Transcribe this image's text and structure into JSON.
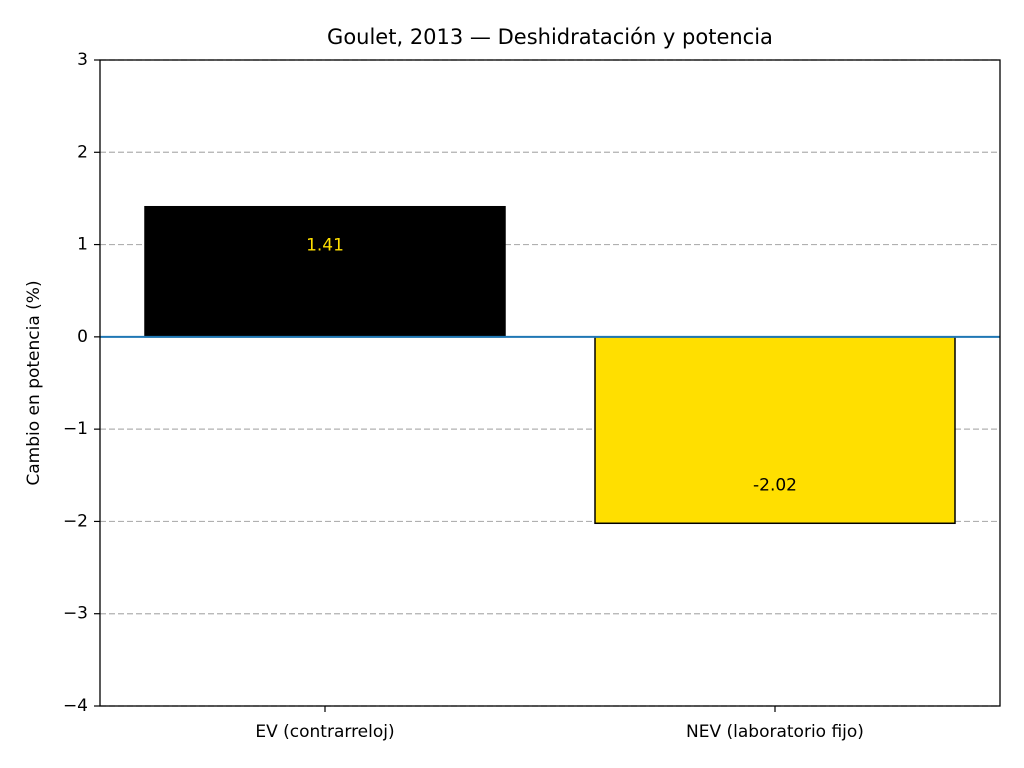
{
  "chart_data": {
    "type": "bar",
    "title": "Goulet, 2013 — Deshidratación y potencia",
    "y_label": "Cambio en potencia (%)",
    "categories": [
      "EV (contrarreloj)",
      "NEV (laboratorio fijo)"
    ],
    "values": [
      1.41,
      -2.02
    ],
    "colors": [
      "#000000",
      "#ffdf00"
    ],
    "edge_color": "#000000",
    "value_label_colors": [
      "#ffdf00",
      "#000000"
    ],
    "zero_line_color": "#1f77b4",
    "ylim": [
      -4,
      3
    ],
    "yticks": [
      {
        "value": -4,
        "label": "−4"
      },
      {
        "value": -3,
        "label": "−3"
      },
      {
        "value": -2,
        "label": "−2"
      },
      {
        "value": -1,
        "label": "−1"
      },
      0,
      1,
      2,
      3
    ],
    "grid": true
  }
}
